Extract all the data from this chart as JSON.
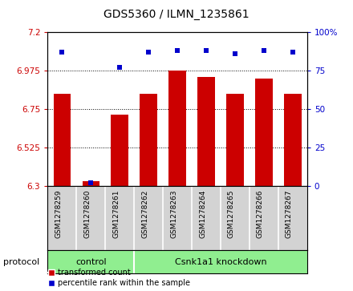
{
  "title": "GDS5360 / ILMN_1235861",
  "samples": [
    "GSM1278259",
    "GSM1278260",
    "GSM1278261",
    "GSM1278262",
    "GSM1278263",
    "GSM1278264",
    "GSM1278265",
    "GSM1278266",
    "GSM1278267"
  ],
  "transformed_counts": [
    6.84,
    6.33,
    6.72,
    6.84,
    6.975,
    6.94,
    6.84,
    6.93,
    6.84
  ],
  "percentile_ranks": [
    87,
    2,
    77,
    87,
    88,
    88,
    86,
    88,
    87
  ],
  "ylim_left": [
    6.3,
    7.2
  ],
  "ylim_right": [
    0,
    100
  ],
  "yticks_left": [
    6.3,
    6.525,
    6.75,
    6.975,
    7.2
  ],
  "yticks_right": [
    0,
    25,
    50,
    75,
    100
  ],
  "ytick_labels_left": [
    "6.3",
    "6.525",
    "6.75",
    "6.975",
    "7.2"
  ],
  "ytick_labels_right": [
    "0",
    "25",
    "50",
    "75",
    "100%"
  ],
  "bar_color": "#cc0000",
  "dot_color": "#0000cc",
  "bar_width": 0.6,
  "n_control": 3,
  "n_knockdown": 6,
  "control_label": "control",
  "knockdown_label": "Csnk1a1 knockdown",
  "protocol_label": "protocol",
  "legend_bar_label": "transformed count",
  "legend_dot_label": "percentile rank within the sample",
  "tick_area_color": "#d3d3d3",
  "group_area_color": "#90ee90",
  "title_fontsize": 10,
  "tick_fontsize": 7.5,
  "sample_fontsize": 6.5,
  "group_fontsize": 8,
  "legend_fontsize": 7
}
